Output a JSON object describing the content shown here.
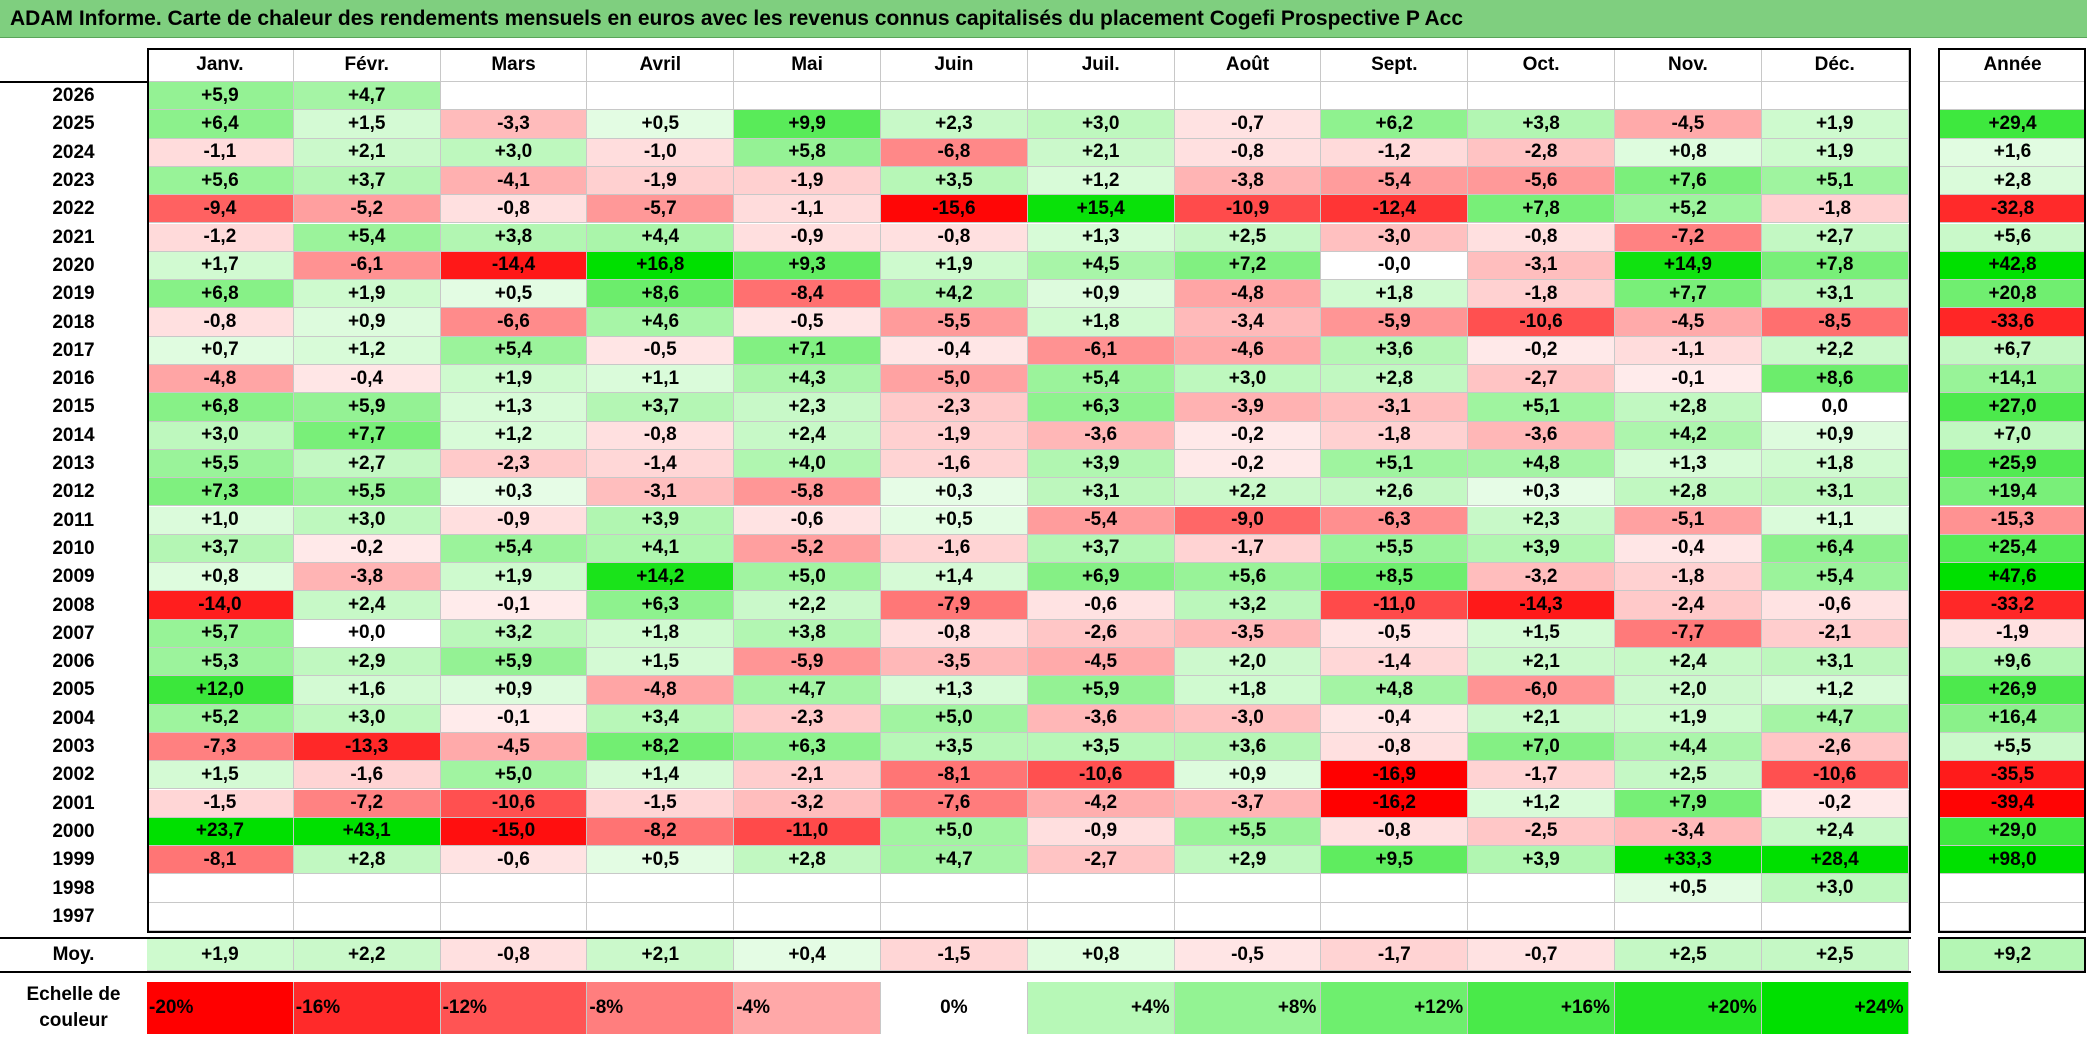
{
  "title": "ADAM Informe. Carte de chaleur des rendements mensuels en euros avec les revenus connus capitalisés du placement Cogefi Prospective P Acc",
  "chart_data": {
    "type": "heatmap",
    "title": "ADAM Informe. Carte de chaleur des rendements mensuels en euros avec les revenus connus capitalisés du placement Cogefi Prospective P Acc",
    "months": [
      "Janv.",
      "Févr.",
      "Mars",
      "Avril",
      "Mai",
      "Juin",
      "Juil.",
      "Août",
      "Sept.",
      "Oct.",
      "Nov.",
      "Déc."
    ],
    "annual_label": "Année",
    "rows": [
      {
        "year": "2026",
        "values": [
          "+5,9",
          "+4,7",
          "",
          "",
          "",
          "",
          "",
          "",
          "",
          "",
          "",
          ""
        ],
        "annual": ""
      },
      {
        "year": "2025",
        "values": [
          "+6,4",
          "+1,5",
          "-3,3",
          "+0,5",
          "+9,9",
          "+2,3",
          "+3,0",
          "-0,7",
          "+6,2",
          "+3,8",
          "-4,5",
          "+1,9"
        ],
        "annual": "+29,4"
      },
      {
        "year": "2024",
        "values": [
          "-1,1",
          "+2,1",
          "+3,0",
          "-1,0",
          "+5,8",
          "-6,8",
          "+2,1",
          "-0,8",
          "-1,2",
          "-2,8",
          "+0,8",
          "+1,9"
        ],
        "annual": "+1,6"
      },
      {
        "year": "2023",
        "values": [
          "+5,6",
          "+3,7",
          "-4,1",
          "-1,9",
          "-1,9",
          "+3,5",
          "+1,2",
          "-3,8",
          "-5,4",
          "-5,6",
          "+7,6",
          "+5,1"
        ],
        "annual": "+2,8"
      },
      {
        "year": "2022",
        "values": [
          "-9,4",
          "-5,2",
          "-0,8",
          "-5,7",
          "-1,1",
          "-15,6",
          "+15,4",
          "-10,9",
          "-12,4",
          "+7,8",
          "+5,2",
          "-1,8"
        ],
        "annual": "-32,8"
      },
      {
        "year": "2021",
        "values": [
          "-1,2",
          "+5,4",
          "+3,8",
          "+4,4",
          "-0,9",
          "-0,8",
          "+1,3",
          "+2,5",
          "-3,0",
          "-0,8",
          "-7,2",
          "+2,7"
        ],
        "annual": "+5,6"
      },
      {
        "year": "2020",
        "values": [
          "+1,7",
          "-6,1",
          "-14,4",
          "+16,8",
          "+9,3",
          "+1,9",
          "+4,5",
          "+7,2",
          "-0,0",
          "-3,1",
          "+14,9",
          "+7,8"
        ],
        "annual": "+42,8"
      },
      {
        "year": "2019",
        "values": [
          "+6,8",
          "+1,9",
          "+0,5",
          "+8,6",
          "-8,4",
          "+4,2",
          "+0,9",
          "-4,8",
          "+1,8",
          "-1,8",
          "+7,7",
          "+3,1"
        ],
        "annual": "+20,8"
      },
      {
        "year": "2018",
        "values": [
          "-0,8",
          "+0,9",
          "-6,6",
          "+4,6",
          "-0,5",
          "-5,5",
          "+1,8",
          "-3,4",
          "-5,9",
          "-10,6",
          "-4,5",
          "-8,5"
        ],
        "annual": "-33,6"
      },
      {
        "year": "2017",
        "values": [
          "+0,7",
          "+1,2",
          "+5,4",
          "-0,5",
          "+7,1",
          "-0,4",
          "-6,1",
          "-4,6",
          "+3,6",
          "-0,2",
          "-1,1",
          "+2,2"
        ],
        "annual": "+6,7"
      },
      {
        "year": "2016",
        "values": [
          "-4,8",
          "-0,4",
          "+1,9",
          "+1,1",
          "+4,3",
          "-5,0",
          "+5,4",
          "+3,0",
          "+2,8",
          "-2,7",
          "-0,1",
          "+8,6"
        ],
        "annual": "+14,1"
      },
      {
        "year": "2015",
        "values": [
          "+6,8",
          "+5,9",
          "+1,3",
          "+3,7",
          "+2,3",
          "-2,3",
          "+6,3",
          "-3,9",
          "-3,1",
          "+5,1",
          "+2,8",
          "0,0"
        ],
        "annual": "+27,0"
      },
      {
        "year": "2014",
        "values": [
          "+3,0",
          "+7,7",
          "+1,2",
          "-0,8",
          "+2,4",
          "-1,9",
          "-3,6",
          "-0,2",
          "-1,8",
          "-3,6",
          "+4,2",
          "+0,9"
        ],
        "annual": "+7,0"
      },
      {
        "year": "2013",
        "values": [
          "+5,5",
          "+2,7",
          "-2,3",
          "-1,4",
          "+4,0",
          "-1,6",
          "+3,9",
          "-0,2",
          "+5,1",
          "+4,8",
          "+1,3",
          "+1,8"
        ],
        "annual": "+25,9"
      },
      {
        "year": "2012",
        "values": [
          "+7,3",
          "+5,5",
          "+0,3",
          "-3,1",
          "-5,8",
          "+0,3",
          "+3,1",
          "+2,2",
          "+2,6",
          "+0,3",
          "+2,8",
          "+3,1"
        ],
        "annual": "+19,4"
      },
      {
        "year": "2011",
        "values": [
          "+1,0",
          "+3,0",
          "-0,9",
          "+3,9",
          "-0,6",
          "+0,5",
          "-5,4",
          "-9,0",
          "-6,3",
          "+2,3",
          "-5,1",
          "+1,1"
        ],
        "annual": "-15,3"
      },
      {
        "year": "2010",
        "values": [
          "+3,7",
          "-0,2",
          "+5,4",
          "+4,1",
          "-5,2",
          "-1,6",
          "+3,7",
          "-1,7",
          "+5,5",
          "+3,9",
          "-0,4",
          "+6,4"
        ],
        "annual": "+25,4"
      },
      {
        "year": "2009",
        "values": [
          "+0,8",
          "-3,8",
          "+1,9",
          "+14,2",
          "+5,0",
          "+1,4",
          "+6,9",
          "+5,6",
          "+8,5",
          "-3,2",
          "-1,8",
          "+5,4"
        ],
        "annual": "+47,6"
      },
      {
        "year": "2008",
        "values": [
          "-14,0",
          "+2,4",
          "-0,1",
          "+6,3",
          "+2,2",
          "-7,9",
          "-0,6",
          "+3,2",
          "-11,0",
          "-14,3",
          "-2,4",
          "-0,6"
        ],
        "annual": "-33,2"
      },
      {
        "year": "2007",
        "values": [
          "+5,7",
          "+0,0",
          "+3,2",
          "+1,8",
          "+3,8",
          "-0,8",
          "-2,6",
          "-3,5",
          "-0,5",
          "+1,5",
          "-7,7",
          "-2,1"
        ],
        "annual": "-1,9"
      },
      {
        "year": "2006",
        "values": [
          "+5,3",
          "+2,9",
          "+5,9",
          "+1,5",
          "-5,9",
          "-3,5",
          "-4,5",
          "+2,0",
          "-1,4",
          "+2,1",
          "+2,4",
          "+3,1"
        ],
        "annual": "+9,6"
      },
      {
        "year": "2005",
        "values": [
          "+12,0",
          "+1,6",
          "+0,9",
          "-4,8",
          "+4,7",
          "+1,3",
          "+5,9",
          "+1,8",
          "+4,8",
          "-6,0",
          "+2,0",
          "+1,2"
        ],
        "annual": "+26,9"
      },
      {
        "year": "2004",
        "values": [
          "+5,2",
          "+3,0",
          "-0,1",
          "+3,4",
          "-2,3",
          "+5,0",
          "-3,6",
          "-3,0",
          "-0,4",
          "+2,1",
          "+1,9",
          "+4,7"
        ],
        "annual": "+16,4"
      },
      {
        "year": "2003",
        "values": [
          "-7,3",
          "-13,3",
          "-4,5",
          "+8,2",
          "+6,3",
          "+3,5",
          "+3,5",
          "+3,6",
          "-0,8",
          "+7,0",
          "+4,4",
          "-2,6"
        ],
        "annual": "+5,5"
      },
      {
        "year": "2002",
        "values": [
          "+1,5",
          "-1,6",
          "+5,0",
          "+1,4",
          "-2,1",
          "-8,1",
          "-10,6",
          "+0,9",
          "-16,9",
          "-1,7",
          "+2,5",
          "-10,6"
        ],
        "annual": "-35,5"
      },
      {
        "year": "2001",
        "values": [
          "-1,5",
          "-7,2",
          "-10,6",
          "-1,5",
          "-3,2",
          "-7,6",
          "-4,2",
          "-3,7",
          "-16,2",
          "+1,2",
          "+7,9",
          "-0,2"
        ],
        "annual": "-39,4"
      },
      {
        "year": "2000",
        "values": [
          "+23,7",
          "+43,1",
          "-15,0",
          "-8,2",
          "-11,0",
          "+5,0",
          "-0,9",
          "+5,5",
          "-0,8",
          "-2,5",
          "-3,4",
          "+2,4"
        ],
        "annual": "+29,0"
      },
      {
        "year": "1999",
        "values": [
          "-8,1",
          "+2,8",
          "-0,6",
          "+0,5",
          "+2,8",
          "+4,7",
          "-2,7",
          "+2,9",
          "+9,5",
          "+3,9",
          "+33,3",
          "+28,4"
        ],
        "annual": "+98,0"
      },
      {
        "year": "1998",
        "values": [
          "",
          "",
          "",
          "",
          "",
          "",
          "",
          "",
          "",
          "",
          "+0,5",
          "+3,0"
        ],
        "annual": ""
      },
      {
        "year": "1997",
        "values": [
          "",
          "",
          "",
          "",
          "",
          "",
          "",
          "",
          "",
          "",
          "",
          ""
        ],
        "annual": ""
      }
    ],
    "average": {
      "label": "Moy.",
      "values": [
        "+1,9",
        "+2,2",
        "-0,8",
        "+2,1",
        "+0,4",
        "-1,5",
        "+0,8",
        "-0,5",
        "-1,7",
        "-0,7",
        "+2,5",
        "+2,5"
      ],
      "annual": "+9,2"
    },
    "scale": {
      "label_line1": "Echelle de",
      "label_line2": "couleur",
      "steps": [
        "-20%",
        "-16%",
        "-12%",
        "-8%",
        "-4%",
        "0%",
        "+4%",
        "+8%",
        "+12%",
        "+16%",
        "+20%",
        "+24%"
      ],
      "step_values": [
        -20,
        -16,
        -12,
        -8,
        -4,
        0,
        4,
        8,
        12,
        16,
        20,
        24
      ]
    },
    "colors": {
      "negative_max": "#ff0000",
      "positive_max": "#00e000",
      "neutral": "#ffffff"
    }
  }
}
